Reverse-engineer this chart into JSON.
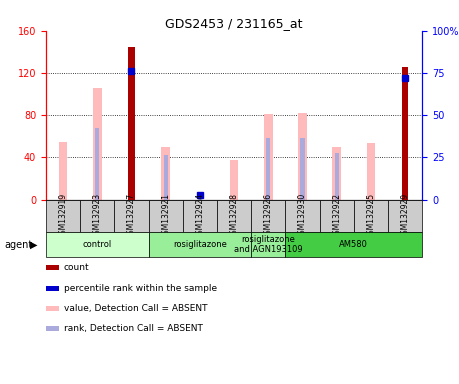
{
  "title": "GDS2453 / 231165_at",
  "samples": [
    "GSM132919",
    "GSM132923",
    "GSM132927",
    "GSM132921",
    "GSM132924",
    "GSM132928",
    "GSM132926",
    "GSM132930",
    "GSM132922",
    "GSM132925",
    "GSM132929"
  ],
  "count": [
    0,
    0,
    145,
    0,
    0,
    0,
    0,
    0,
    0,
    0,
    126
  ],
  "percentile_rank": [
    null,
    null,
    76,
    null,
    3,
    null,
    null,
    null,
    null,
    null,
    72
  ],
  "value_absent": [
    55,
    106,
    null,
    50,
    null,
    38,
    81,
    82,
    50,
    54,
    null
  ],
  "rank_absent": [
    null,
    68,
    null,
    42,
    4,
    null,
    58,
    58,
    44,
    null,
    null
  ],
  "groups": [
    {
      "label": "control",
      "start": 0,
      "end": 3,
      "color": "#ccffcc"
    },
    {
      "label": "rosiglitazone",
      "start": 3,
      "end": 6,
      "color": "#99ee99"
    },
    {
      "label": "rosiglitazone\nand AGN193109",
      "start": 6,
      "end": 7,
      "color": "#99ee99"
    },
    {
      "label": "AM580",
      "start": 7,
      "end": 11,
      "color": "#44cc44"
    }
  ],
  "ylim_left": [
    0,
    160
  ],
  "ylim_right": [
    0,
    100
  ],
  "yticks_left": [
    0,
    40,
    80,
    120,
    160
  ],
  "yticks_right": [
    0,
    25,
    50,
    75,
    100
  ],
  "ytick_labels_right": [
    "0",
    "25",
    "50",
    "75",
    "100%"
  ],
  "color_count": "#aa0000",
  "color_percentile": "#0000cc",
  "color_value_absent": "#ffbbbb",
  "color_rank_absent": "#aaaadd",
  "legend_labels": [
    "count",
    "percentile rank within the sample",
    "value, Detection Call = ABSENT",
    "rank, Detection Call = ABSENT"
  ]
}
